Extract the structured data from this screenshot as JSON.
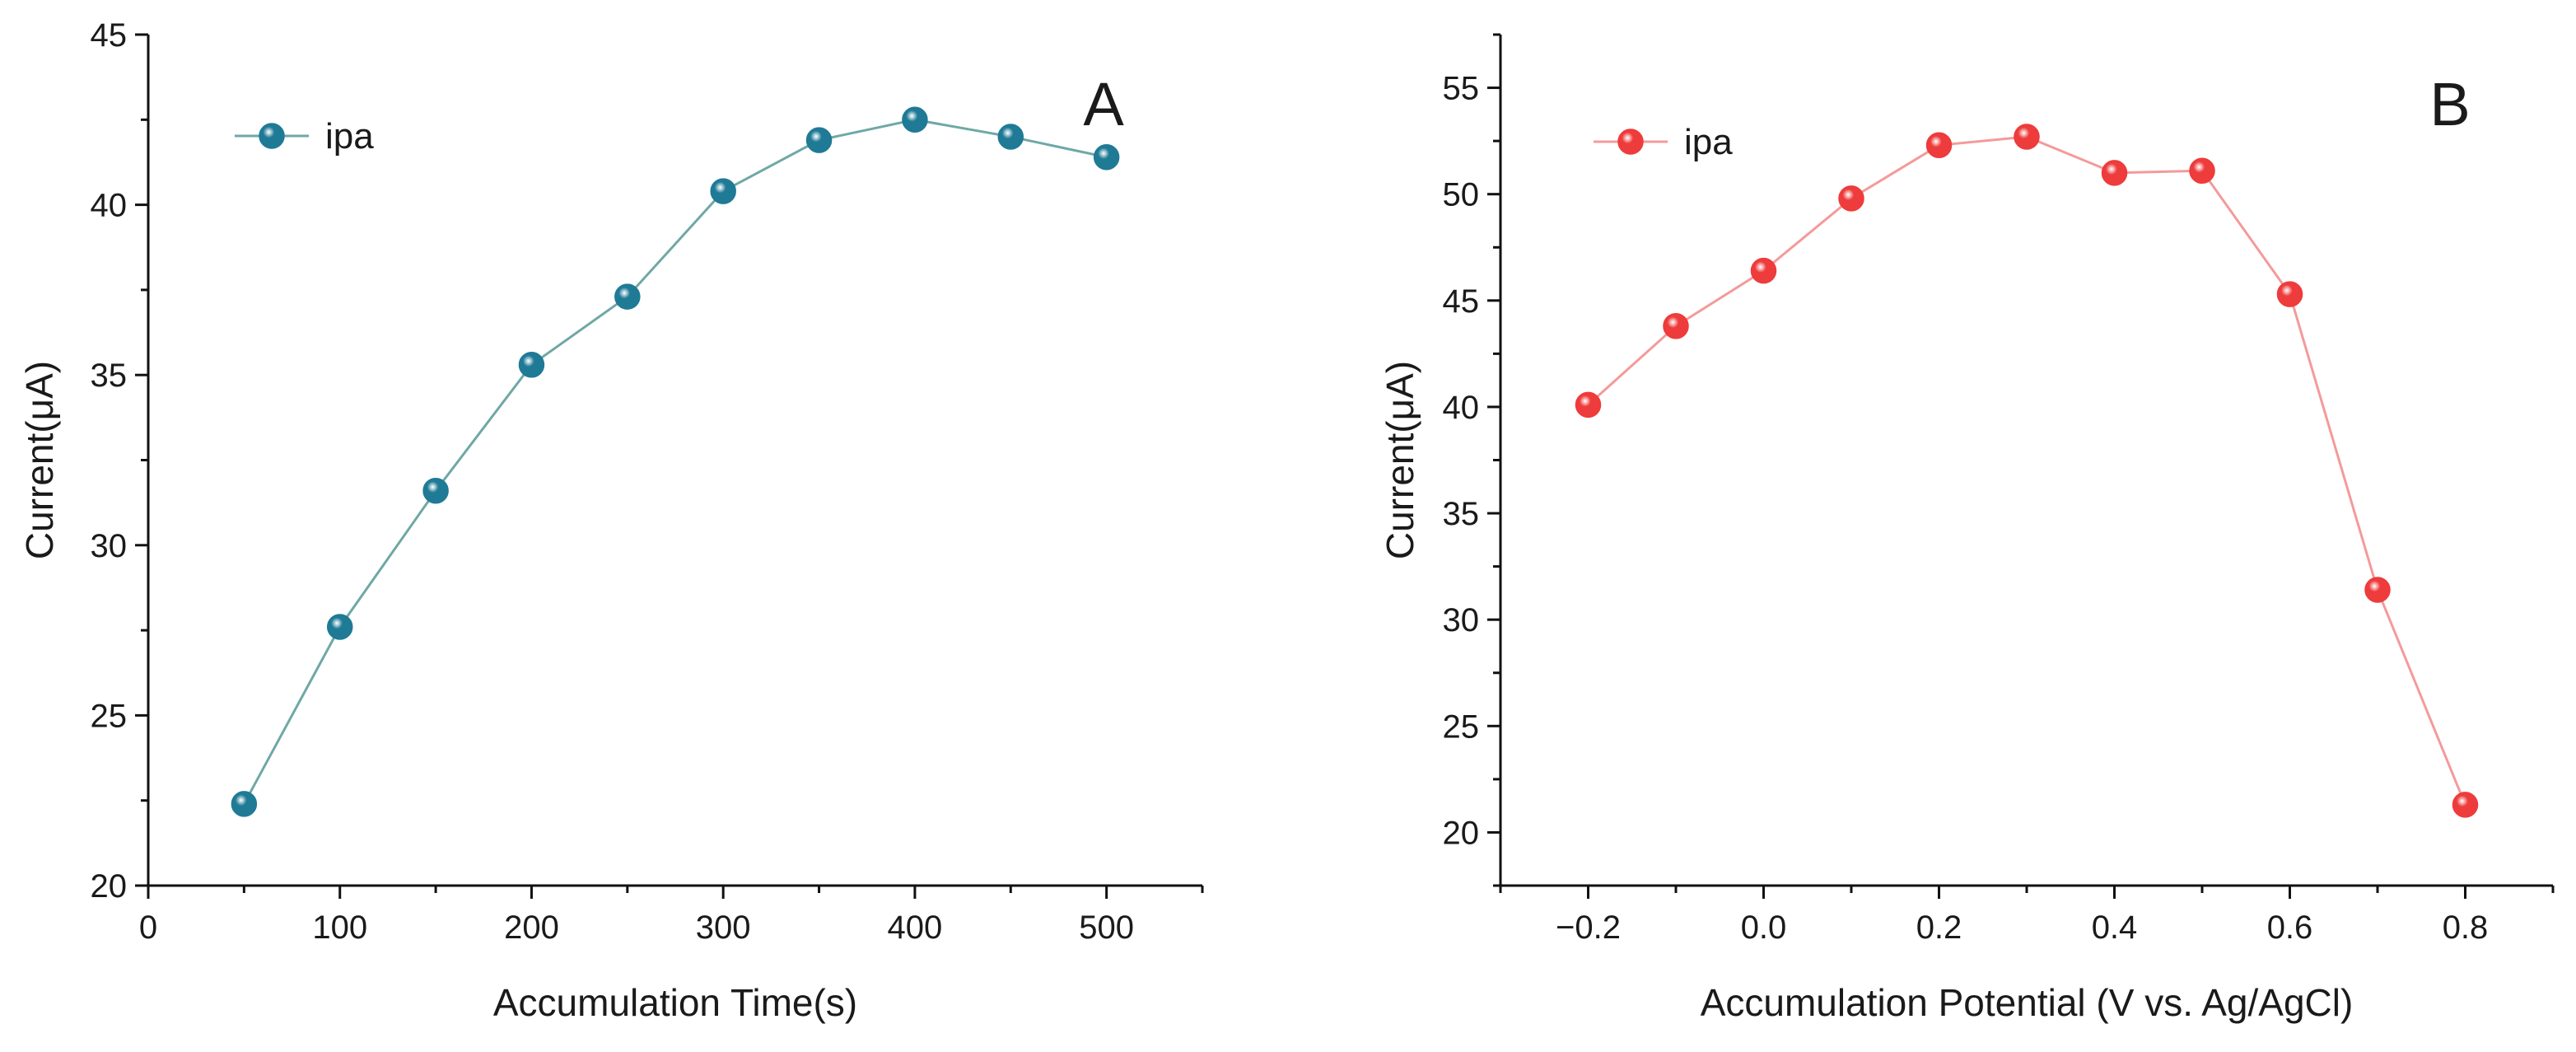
{
  "chart_data": [
    {
      "type": "line",
      "panel_label": "A",
      "xlabel": "Accumulation Time(s)",
      "ylabel": "Current(μA)",
      "xlim": [
        0,
        550
      ],
      "ylim": [
        20,
        45
      ],
      "xticks": [
        0,
        100,
        200,
        300,
        400,
        500
      ],
      "xtick_labels": [
        "0",
        "100",
        "200",
        "300",
        "400",
        "500"
      ],
      "yticks": [
        20,
        25,
        30,
        35,
        40,
        45
      ],
      "ytick_labels": [
        "20",
        "25",
        "30",
        "35",
        "40",
        "45"
      ],
      "grid": false,
      "legend_position": "top-left",
      "series": [
        {
          "name": "ipa",
          "color": "#1f7a96",
          "line_color": "#6fa8a6",
          "x": [
            50,
            100,
            150,
            200,
            250,
            300,
            350,
            400,
            450,
            500
          ],
          "y": [
            22.4,
            27.6,
            31.6,
            35.3,
            37.3,
            40.4,
            41.9,
            42.5,
            42.0,
            41.4
          ]
        }
      ]
    },
    {
      "type": "line",
      "panel_label": "B",
      "xlabel": "Accumulation Potential (V vs. Ag/AgCl)",
      "ylabel": "Current(μA)",
      "xlim": [
        -0.3,
        0.9
      ],
      "ylim": [
        17.5,
        57.5
      ],
      "xticks": [
        -0.2,
        0.0,
        0.2,
        0.4,
        0.6,
        0.8
      ],
      "xtick_labels": [
        "−0.2",
        "0.0",
        "0.2",
        "0.4",
        "0.6",
        "0.8"
      ],
      "yticks": [
        20,
        25,
        30,
        35,
        40,
        45,
        50,
        55
      ],
      "ytick_labels": [
        "20",
        "25",
        "30",
        "35",
        "40",
        "45",
        "50",
        "55"
      ],
      "grid": false,
      "legend_position": "top-left",
      "series": [
        {
          "name": "ipa",
          "color": "#ee3b3b",
          "line_color": "#f49a9a",
          "x": [
            -0.2,
            -0.1,
            0.0,
            0.1,
            0.2,
            0.3,
            0.4,
            0.5,
            0.6,
            0.7,
            0.8
          ],
          "y": [
            40.1,
            43.8,
            46.4,
            49.8,
            52.3,
            52.7,
            51.0,
            51.1,
            45.3,
            31.4,
            21.3
          ]
        }
      ]
    }
  ]
}
